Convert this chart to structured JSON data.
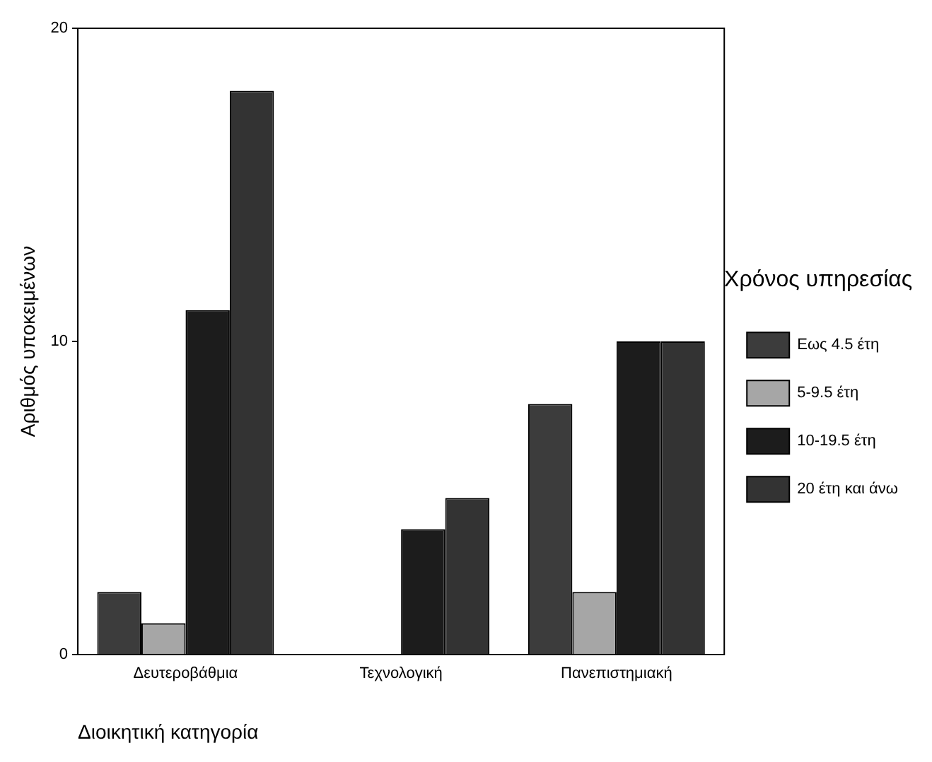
{
  "chart_data": {
    "type": "bar",
    "xlabel": "Διοικητική κατηγορία",
    "ylabel": "Αριθμός υποκειμένων",
    "legend_title": "Χρόνος υπηρεσίας",
    "categories": [
      "Δευτεροβάθμια",
      "Τεχνολογική",
      "Πανεπιστημιακή"
    ],
    "series": [
      {
        "name": "Εως 4.5 έτη",
        "color": "#3c3c3c",
        "values": [
          2,
          0,
          8
        ]
      },
      {
        "name": "5-9.5 έτη",
        "color": "#a6a6a6",
        "values": [
          1,
          0,
          2
        ]
      },
      {
        "name": "10-19.5 έτη",
        "color": "#1c1c1c",
        "values": [
          11,
          4,
          10
        ]
      },
      {
        "name": "20 έτη και άνω",
        "color": "#333333",
        "values": [
          18,
          5,
          10
        ]
      }
    ],
    "ylim": [
      0,
      20
    ],
    "yticks": [
      0,
      10,
      20
    ],
    "grid": false,
    "legend": "right"
  }
}
